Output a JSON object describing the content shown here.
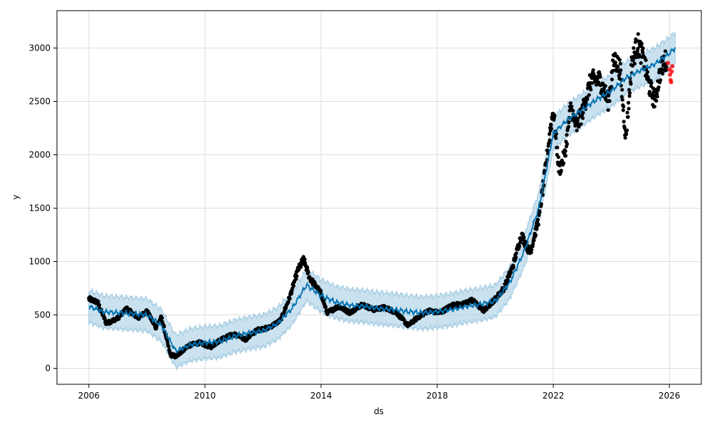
{
  "chart_data": {
    "type": "line",
    "title": "",
    "xlabel": "ds",
    "ylabel": "y",
    "xlim": [
      2004.9,
      2027.1
    ],
    "ylim": [
      -150,
      3350
    ],
    "grid": true,
    "x_ticks": [
      2006,
      2010,
      2014,
      2018,
      2022,
      2026
    ],
    "x_tick_labels": [
      "2006",
      "2010",
      "2014",
      "2018",
      "2022",
      "2026"
    ],
    "y_ticks": [
      0,
      500,
      1000,
      1500,
      2000,
      2500,
      3000
    ],
    "y_tick_labels": [
      "0",
      "500",
      "1000",
      "1500",
      "2000",
      "2500",
      "3000"
    ],
    "colors": {
      "forecast_line": "#0072B2",
      "uncertainty_band": "#9ec9e2",
      "actual_points": "#000000",
      "test_points": "#ff0000"
    },
    "series": [
      {
        "role": "forecast",
        "points": [
          [
            2006.0,
            580
          ],
          [
            2006.5,
            530
          ],
          [
            2007.0,
            520
          ],
          [
            2007.5,
            510
          ],
          [
            2008.0,
            500
          ],
          [
            2008.5,
            400
          ],
          [
            2009.0,
            160
          ],
          [
            2009.5,
            220
          ],
          [
            2010.0,
            240
          ],
          [
            2010.5,
            250
          ],
          [
            2011.0,
            300
          ],
          [
            2011.5,
            330
          ],
          [
            2012.0,
            350
          ],
          [
            2012.5,
            420
          ],
          [
            2013.0,
            560
          ],
          [
            2013.5,
            780
          ],
          [
            2014.0,
            680
          ],
          [
            2014.5,
            620
          ],
          [
            2015.0,
            590
          ],
          [
            2015.5,
            580
          ],
          [
            2016.0,
            560
          ],
          [
            2016.5,
            550
          ],
          [
            2017.0,
            530
          ],
          [
            2017.5,
            520
          ],
          [
            2018.0,
            530
          ],
          [
            2018.5,
            550
          ],
          [
            2019.0,
            580
          ],
          [
            2019.5,
            600
          ],
          [
            2020.0,
            630
          ],
          [
            2020.5,
            800
          ],
          [
            2021.0,
            1100
          ],
          [
            2021.5,
            1500
          ],
          [
            2022.0,
            2200
          ],
          [
            2022.5,
            2330
          ],
          [
            2023.0,
            2420
          ],
          [
            2023.5,
            2520
          ],
          [
            2024.0,
            2600
          ],
          [
            2024.5,
            2720
          ],
          [
            2025.0,
            2790
          ],
          [
            2025.5,
            2850
          ],
          [
            2026.0,
            2950
          ],
          [
            2026.2,
            3000
          ]
        ],
        "band_half_width": 150
      },
      {
        "role": "actual",
        "points": [
          [
            2006.0,
            650
          ],
          [
            2006.3,
            620
          ],
          [
            2006.6,
            420
          ],
          [
            2007.0,
            470
          ],
          [
            2007.3,
            560
          ],
          [
            2007.7,
            470
          ],
          [
            2008.0,
            540
          ],
          [
            2008.3,
            380
          ],
          [
            2008.5,
            480
          ],
          [
            2008.8,
            130
          ],
          [
            2009.0,
            110
          ],
          [
            2009.4,
            210
          ],
          [
            2009.8,
            240
          ],
          [
            2010.2,
            200
          ],
          [
            2010.6,
            280
          ],
          [
            2011.0,
            320
          ],
          [
            2011.4,
            270
          ],
          [
            2011.8,
            360
          ],
          [
            2012.2,
            380
          ],
          [
            2012.6,
            450
          ],
          [
            2012.9,
            650
          ],
          [
            2013.2,
            920
          ],
          [
            2013.4,
            1020
          ],
          [
            2013.6,
            850
          ],
          [
            2014.0,
            700
          ],
          [
            2014.2,
            520
          ],
          [
            2014.6,
            580
          ],
          [
            2015.0,
            520
          ],
          [
            2015.4,
            600
          ],
          [
            2015.8,
            550
          ],
          [
            2016.2,
            570
          ],
          [
            2016.6,
            520
          ],
          [
            2017.0,
            400
          ],
          [
            2017.3,
            470
          ],
          [
            2017.7,
            540
          ],
          [
            2018.1,
            520
          ],
          [
            2018.5,
            590
          ],
          [
            2018.9,
            600
          ],
          [
            2019.2,
            640
          ],
          [
            2019.6,
            540
          ],
          [
            2020.0,
            650
          ],
          [
            2020.3,
            750
          ],
          [
            2020.6,
            950
          ],
          [
            2020.9,
            1250
          ],
          [
            2021.2,
            1080
          ],
          [
            2021.5,
            1400
          ],
          [
            2021.7,
            1800
          ],
          [
            2021.9,
            2250
          ],
          [
            2022.0,
            2420
          ],
          [
            2022.2,
            1850
          ],
          [
            2022.4,
            2000
          ],
          [
            2022.6,
            2450
          ],
          [
            2022.8,
            2250
          ],
          [
            2023.0,
            2400
          ],
          [
            2023.3,
            2700
          ],
          [
            2023.6,
            2700
          ],
          [
            2023.9,
            2500
          ],
          [
            2024.1,
            2900
          ],
          [
            2024.3,
            2800
          ],
          [
            2024.5,
            2150
          ],
          [
            2024.7,
            2850
          ],
          [
            2024.9,
            3050
          ],
          [
            2025.1,
            2900
          ],
          [
            2025.3,
            2650
          ],
          [
            2025.5,
            2500
          ],
          [
            2025.7,
            2800
          ],
          [
            2025.9,
            2900
          ]
        ]
      },
      {
        "role": "test",
        "points": [
          [
            2025.95,
            2860
          ],
          [
            2026.0,
            2800
          ],
          [
            2026.02,
            2750
          ],
          [
            2026.04,
            2700
          ],
          [
            2026.06,
            2680
          ],
          [
            2026.08,
            2780
          ],
          [
            2026.1,
            2830
          ]
        ]
      }
    ]
  }
}
